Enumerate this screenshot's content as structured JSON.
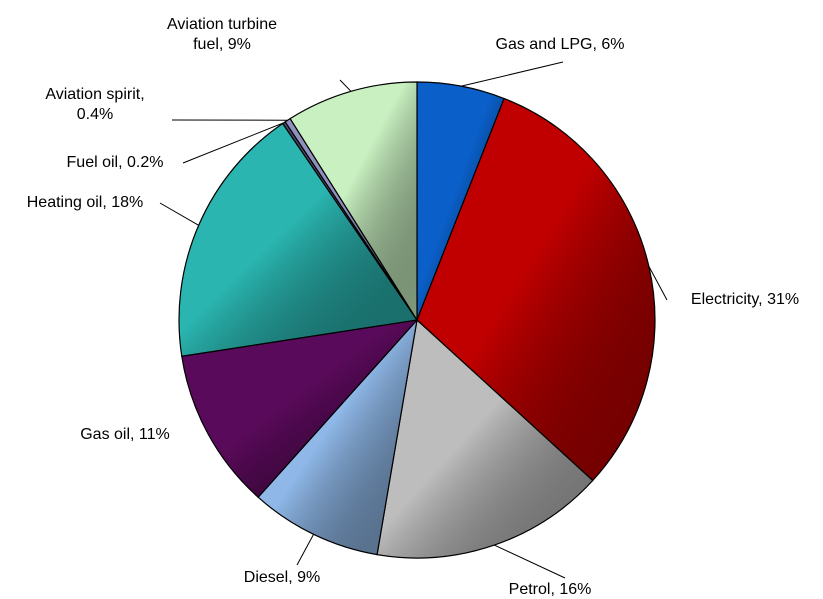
{
  "chart_data": {
    "type": "pie",
    "values": [
      6,
      31,
      16,
      9,
      11,
      18,
      0.2,
      0.4,
      9
    ],
    "value_labels": [
      "Gas and LPG, 6%",
      "Electricity, 31%",
      "Petrol, 16%",
      "Diesel, 9%",
      "Gas oil, 11%",
      "Heating oil, 18%",
      "Fuel oil, 0.2%",
      "Aviation spirit, 0.4%",
      "Aviation turbine fuel, 9%"
    ],
    "colors": [
      "#0a5fc8",
      "#c00000",
      "#bdbdbd",
      "#8fb8e8",
      "#5a0a5a",
      "#2ab5b0",
      "#4a4a6a",
      "#9090c0",
      "#c8f0c0"
    ]
  }
}
